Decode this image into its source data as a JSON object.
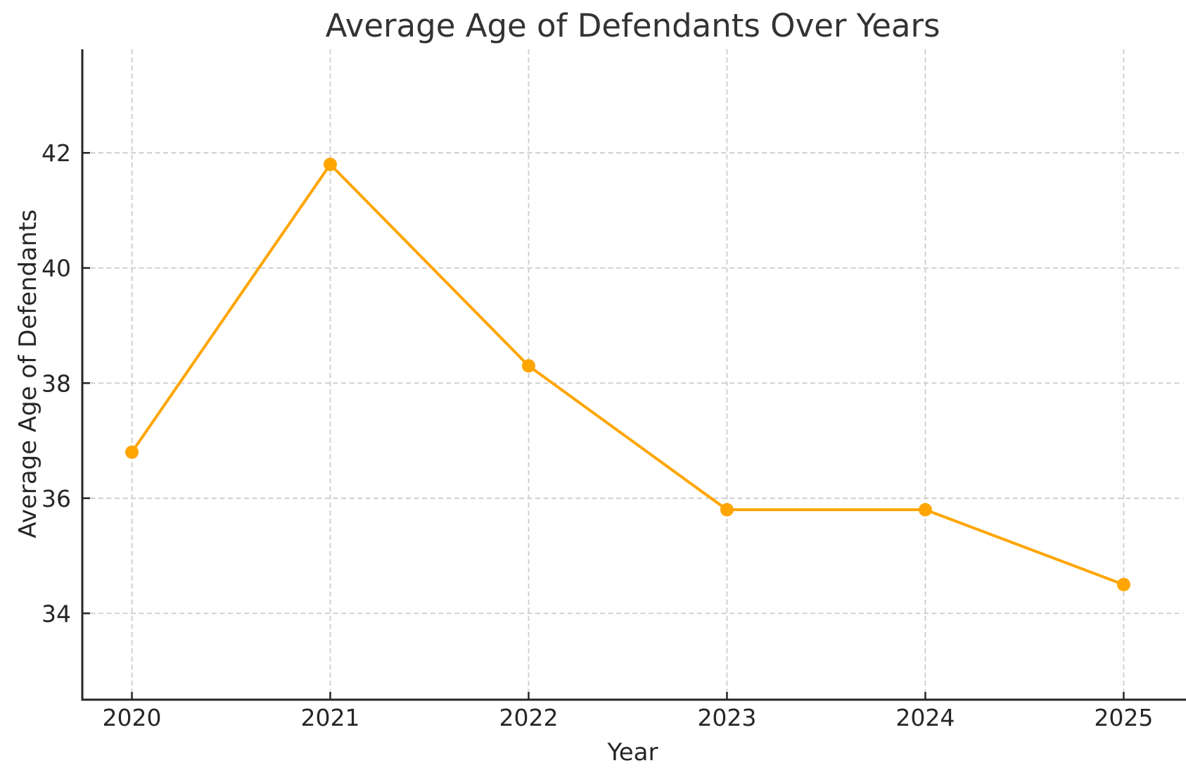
{
  "chart_data": {
    "type": "line",
    "title": "Average Age of Defendants Over Years",
    "xlabel": "Year",
    "ylabel": "Average Age of Defendants",
    "x": [
      2020,
      2021,
      2022,
      2023,
      2024,
      2025
    ],
    "series": [
      {
        "name": "Average Age of Defendants",
        "values": [
          36.8,
          41.8,
          38.3,
          35.8,
          35.8,
          34.5
        ]
      }
    ],
    "xticks": [
      2020,
      2021,
      2022,
      2023,
      2024,
      2025
    ],
    "xtick_labels": [
      "2020",
      "2021",
      "2022",
      "2023",
      "2024",
      "2025"
    ],
    "yticks": [
      34,
      36,
      38,
      40,
      42
    ],
    "ytick_labels": [
      "34",
      "36",
      "38",
      "40",
      "42"
    ],
    "xlim": [
      2019.75,
      2025.3
    ],
    "ylim": [
      32.5,
      43.8
    ],
    "grid": true,
    "grid_style": "dashed",
    "legend": "none",
    "colors": {
      "line": "#FFA500",
      "marker": "#FFA500",
      "grid": "#cccccc",
      "spine": "#262626",
      "tick": "#262626",
      "text": "#262626",
      "title": "#333333",
      "background": "#ffffff"
    }
  }
}
